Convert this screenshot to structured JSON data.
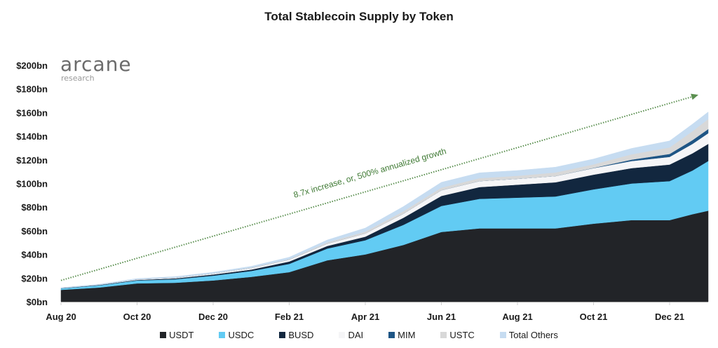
{
  "chart_data": {
    "type": "area",
    "stacked": true,
    "title": "Total Stablecoin Supply by Token",
    "xlabel": "",
    "ylabel": "",
    "ylim": [
      0,
      200
    ],
    "yticks": [
      "$0bn",
      "$20bn",
      "$40bn",
      "$60bn",
      "$80bn",
      "$100bn",
      "$120bn",
      "$140bn",
      "$160bn",
      "$180bn",
      "$200bn"
    ],
    "ytick_values": [
      0,
      20,
      40,
      60,
      80,
      100,
      120,
      140,
      160,
      180,
      200
    ],
    "xticks": [
      "Aug 20",
      "Oct 20",
      "Dec 20",
      "Feb 21",
      "Apr 21",
      "Jun 21",
      "Aug 21",
      "Oct 21",
      "Dec 21"
    ],
    "x": [
      "2020-08",
      "2020-09",
      "2020-10",
      "2020-11",
      "2020-12",
      "2021-01",
      "2021-02",
      "2021-03",
      "2021-04",
      "2021-05",
      "2021-06",
      "2021-07",
      "2021-08",
      "2021-09",
      "2021-10",
      "2021-11",
      "2021-12",
      "2022-01a",
      "2022-01b"
    ],
    "x_index_range": [
      0,
      17
    ],
    "series": [
      {
        "name": "USDT",
        "color": "#222428",
        "values": [
          10,
          12,
          15.5,
          16,
          18,
          21,
          25,
          35,
          40,
          48,
          59,
          62,
          62,
          62,
          66,
          69,
          69,
          74,
          77
        ]
      },
      {
        "name": "USDC",
        "color": "#62cbf3",
        "values": [
          1.2,
          1.8,
          2.5,
          3,
          4,
          5,
          7,
          10,
          12,
          17,
          22,
          25,
          26,
          27,
          29,
          31,
          33,
          37,
          42
        ]
      },
      {
        "name": "BUSD",
        "color": "#12273f",
        "values": [
          0.2,
          0.3,
          0.4,
          0.7,
          1,
          1.2,
          2,
          2.2,
          3,
          6,
          8.5,
          10,
          11,
          12,
          12.5,
          13,
          14,
          14.5,
          14.5
        ]
      },
      {
        "name": "DAI",
        "color": "#f5f5f7",
        "values": [
          0.1,
          0.2,
          0.5,
          0.6,
          0.9,
          1.3,
          1.6,
          2,
          2.8,
          3.5,
          4.8,
          5,
          5,
          5.3,
          5.5,
          6,
          6.5,
          8,
          9
        ]
      },
      {
        "name": "MIM",
        "color": "#1e5585",
        "values": [
          0,
          0,
          0,
          0,
          0,
          0,
          0,
          0,
          0,
          0,
          0,
          0,
          0,
          0,
          0.2,
          1.2,
          2.5,
          3.2,
          3.5
        ]
      },
      {
        "name": "USTC",
        "color": "#d8d8d8",
        "values": [
          0,
          0,
          0.1,
          0.2,
          0.2,
          0.4,
          0.5,
          1,
          1.5,
          2,
          2.2,
          2.5,
          2.5,
          3,
          3,
          4.5,
          5.5,
          7.5,
          8.5
        ]
      },
      {
        "name": "Total Others",
        "color": "#c6dcf1",
        "values": [
          0.4,
          0.5,
          0.6,
          0.7,
          0.8,
          1,
          1.5,
          2,
          3,
          4,
          4.5,
          4.5,
          4.5,
          4.5,
          4.5,
          5,
          5.5,
          6,
          6
        ]
      }
    ],
    "annotation": {
      "text": "8.7x increase, or, 500% annualized growth",
      "color": "#5a8f4f",
      "trend_start_value": 18,
      "trend_end_value": 175
    },
    "grid": false,
    "legend_position": "bottom"
  },
  "logo": {
    "brand": "arcane",
    "sub": "research"
  }
}
